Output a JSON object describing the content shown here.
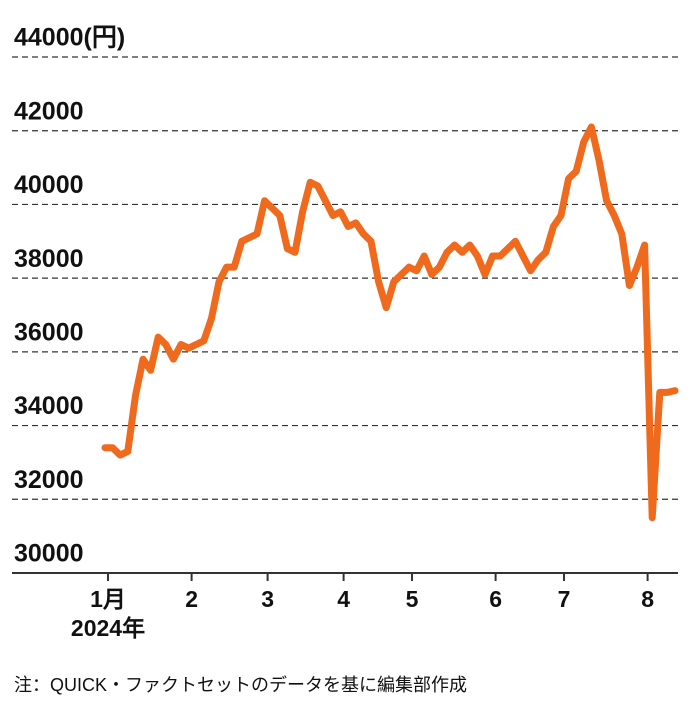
{
  "chart_data": {
    "type": "line",
    "categories": [
      "1月",
      null,
      null,
      null,
      null,
      null,
      null,
      null,
      null,
      null,
      null,
      "2",
      null,
      null,
      null,
      null,
      null,
      null,
      null,
      null,
      null,
      "3",
      null,
      null,
      null,
      null,
      null,
      null,
      null,
      null,
      null,
      "4",
      null,
      null,
      null,
      null,
      null,
      null,
      null,
      null,
      "5",
      null,
      null,
      null,
      null,
      null,
      null,
      null,
      null,
      null,
      null,
      "6",
      null,
      null,
      null,
      null,
      null,
      null,
      null,
      null,
      "7",
      null,
      null,
      null,
      null,
      null,
      null,
      null,
      null,
      null,
      null,
      "8",
      null,
      null,
      null,
      null
    ],
    "year_label": "2024年",
    "series": [
      {
        "color": "#ef6a1c",
        "values": [
          33400,
          33400,
          33200,
          33300,
          34800,
          35800,
          35500,
          36400,
          36200,
          35800,
          36200,
          36100,
          36200,
          36300,
          36900,
          37900,
          38300,
          38300,
          39000,
          39100,
          39200,
          40100,
          39900,
          39700,
          38800,
          38700,
          39800,
          40600,
          40500,
          40100,
          39700,
          39800,
          39400,
          39500,
          39200,
          39000,
          37900,
          37200,
          37900,
          38100,
          38300,
          38200,
          38600,
          38100,
          38300,
          38700,
          38900,
          38700,
          38900,
          38600,
          38100,
          38600,
          38600,
          38800,
          39000,
          38600,
          38200,
          38500,
          38700,
          39400,
          39700,
          40700,
          40900,
          41700,
          42100,
          41200,
          40100,
          39700,
          39200,
          37800,
          38300,
          38900,
          31500,
          34900,
          34900,
          34950
        ]
      }
    ],
    "ylim": [
      30000,
      44000
    ],
    "yticks": [
      30000,
      32000,
      34000,
      36000,
      38000,
      40000,
      42000,
      {
        "value": 44000,
        "label": "44000(円)"
      }
    ],
    "grid": true,
    "note": "注：QUICK・ファクトセットのデータを基に編集部作成"
  }
}
